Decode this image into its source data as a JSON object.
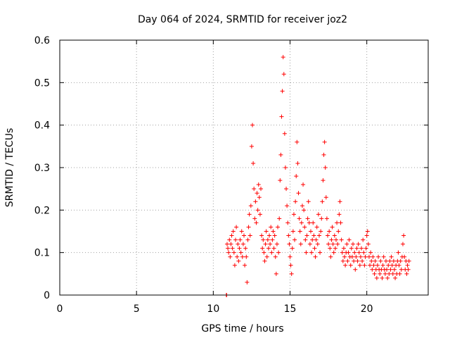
{
  "chart_data": {
    "type": "scatter",
    "title": "Day 064 of 2024, SRMTID for receiver joz2",
    "xlabel": "GPS time / hours",
    "ylabel": "SRMTID / TECUs",
    "xlim": [
      0,
      24
    ],
    "ylim": [
      0,
      0.6
    ],
    "x_ticks": [
      0,
      5,
      10,
      15,
      20
    ],
    "x_tick_labels": [
      "0",
      "5",
      "10",
      "15",
      "20"
    ],
    "y_ticks": [
      0,
      0.1,
      0.2,
      0.3,
      0.4,
      0.5,
      0.6
    ],
    "y_tick_labels": [
      "0",
      "0.1",
      "0.2",
      "0.3",
      "0.4",
      "0.5",
      "0.6"
    ],
    "grid": true,
    "marker": "+",
    "color": "#ff0000",
    "series": [
      {
        "name": "SRMTID",
        "points": [
          [
            10.85,
            0.0
          ],
          [
            10.87,
            0.0
          ],
          [
            10.9,
            0.12
          ],
          [
            10.95,
            0.11
          ],
          [
            11.0,
            0.1
          ],
          [
            11.05,
            0.13
          ],
          [
            11.1,
            0.09
          ],
          [
            11.15,
            0.12
          ],
          [
            11.2,
            0.14
          ],
          [
            11.25,
            0.11
          ],
          [
            11.3,
            0.15
          ],
          [
            11.35,
            0.1
          ],
          [
            11.4,
            0.07
          ],
          [
            11.45,
            0.13
          ],
          [
            11.5,
            0.16
          ],
          [
            11.55,
            0.09
          ],
          [
            11.6,
            0.12
          ],
          [
            11.65,
            0.08
          ],
          [
            11.7,
            0.11
          ],
          [
            11.75,
            0.13
          ],
          [
            11.8,
            0.1
          ],
          [
            11.85,
            0.15
          ],
          [
            11.9,
            0.09
          ],
          [
            11.95,
            0.12
          ],
          [
            12.0,
            0.14
          ],
          [
            12.05,
            0.07
          ],
          [
            12.1,
            0.11
          ],
          [
            12.15,
            0.09
          ],
          [
            12.2,
            0.03
          ],
          [
            12.25,
            0.13
          ],
          [
            12.3,
            0.16
          ],
          [
            12.35,
            0.19
          ],
          [
            12.4,
            0.14
          ],
          [
            12.45,
            0.21
          ],
          [
            12.5,
            0.35
          ],
          [
            12.55,
            0.4
          ],
          [
            12.6,
            0.31
          ],
          [
            12.65,
            0.25
          ],
          [
            12.7,
            0.18
          ],
          [
            12.75,
            0.22
          ],
          [
            12.8,
            0.17
          ],
          [
            12.85,
            0.24
          ],
          [
            12.9,
            0.2
          ],
          [
            12.95,
            0.26
          ],
          [
            13.0,
            0.23
          ],
          [
            13.05,
            0.19
          ],
          [
            13.1,
            0.25
          ],
          [
            13.15,
            0.14
          ],
          [
            13.2,
            0.11
          ],
          [
            13.25,
            0.13
          ],
          [
            13.3,
            0.1
          ],
          [
            13.35,
            0.08
          ],
          [
            13.4,
            0.12
          ],
          [
            13.45,
            0.15
          ],
          [
            13.5,
            0.09
          ],
          [
            13.55,
            0.13
          ],
          [
            13.6,
            0.11
          ],
          [
            13.65,
            0.14
          ],
          [
            13.7,
            0.12
          ],
          [
            13.75,
            0.16
          ],
          [
            13.8,
            0.1
          ],
          [
            13.85,
            0.13
          ],
          [
            13.9,
            0.15
          ],
          [
            13.95,
            0.11
          ],
          [
            14.0,
            0.14
          ],
          [
            14.05,
            0.09
          ],
          [
            14.1,
            0.05
          ],
          [
            14.15,
            0.12
          ],
          [
            14.2,
            0.16
          ],
          [
            14.25,
            0.1
          ],
          [
            14.3,
            0.18
          ],
          [
            14.35,
            0.27
          ],
          [
            14.4,
            0.33
          ],
          [
            14.45,
            0.42
          ],
          [
            14.5,
            0.48
          ],
          [
            14.55,
            0.56
          ],
          [
            14.6,
            0.52
          ],
          [
            14.65,
            0.38
          ],
          [
            14.7,
            0.3
          ],
          [
            14.75,
            0.25
          ],
          [
            14.8,
            0.21
          ],
          [
            14.85,
            0.17
          ],
          [
            14.9,
            0.14
          ],
          [
            14.95,
            0.12
          ],
          [
            15.0,
            0.09
          ],
          [
            15.05,
            0.07
          ],
          [
            15.1,
            0.05
          ],
          [
            15.15,
            0.11
          ],
          [
            15.2,
            0.15
          ],
          [
            15.25,
            0.19
          ],
          [
            15.3,
            0.13
          ],
          [
            15.35,
            0.22
          ],
          [
            15.4,
            0.28
          ],
          [
            15.45,
            0.36
          ],
          [
            15.5,
            0.31
          ],
          [
            15.55,
            0.24
          ],
          [
            15.6,
            0.18
          ],
          [
            15.65,
            0.15
          ],
          [
            15.7,
            0.12
          ],
          [
            15.75,
            0.17
          ],
          [
            15.8,
            0.21
          ],
          [
            15.85,
            0.26
          ],
          [
            15.9,
            0.2
          ],
          [
            15.95,
            0.16
          ],
          [
            16.0,
            0.13
          ],
          [
            16.05,
            0.1
          ],
          [
            16.1,
            0.14
          ],
          [
            16.15,
            0.18
          ],
          [
            16.2,
            0.22
          ],
          [
            16.25,
            0.17
          ],
          [
            16.3,
            0.12
          ],
          [
            16.35,
            0.15
          ],
          [
            16.4,
            0.1
          ],
          [
            16.45,
            0.13
          ],
          [
            16.5,
            0.17
          ],
          [
            16.55,
            0.14
          ],
          [
            16.6,
            0.11
          ],
          [
            16.65,
            0.09
          ],
          [
            16.7,
            0.13
          ],
          [
            16.75,
            0.16
          ],
          [
            16.8,
            0.12
          ],
          [
            16.85,
            0.19
          ],
          [
            16.9,
            0.14
          ],
          [
            16.95,
            0.1
          ],
          [
            17.0,
            0.15
          ],
          [
            17.05,
            0.18
          ],
          [
            17.1,
            0.22
          ],
          [
            17.15,
            0.27
          ],
          [
            17.2,
            0.33
          ],
          [
            17.25,
            0.36
          ],
          [
            17.3,
            0.3
          ],
          [
            17.35,
            0.23
          ],
          [
            17.4,
            0.18
          ],
          [
            17.45,
            0.14
          ],
          [
            17.5,
            0.12
          ],
          [
            17.55,
            0.15
          ],
          [
            17.6,
            0.11
          ],
          [
            17.65,
            0.09
          ],
          [
            17.7,
            0.13
          ],
          [
            17.75,
            0.16
          ],
          [
            17.8,
            0.12
          ],
          [
            17.85,
            0.1
          ],
          [
            17.9,
            0.14
          ],
          [
            17.95,
            0.11
          ],
          [
            18.0,
            0.13
          ],
          [
            18.05,
            0.17
          ],
          [
            18.1,
            0.12
          ],
          [
            18.15,
            0.15
          ],
          [
            18.2,
            0.19
          ],
          [
            18.25,
            0.22
          ],
          [
            18.3,
            0.17
          ],
          [
            18.35,
            0.13
          ],
          [
            18.4,
            0.1
          ],
          [
            18.45,
            0.08
          ],
          [
            18.5,
            0.11
          ],
          [
            18.55,
            0.09
          ],
          [
            18.6,
            0.07
          ],
          [
            18.65,
            0.1
          ],
          [
            18.7,
            0.12
          ],
          [
            18.75,
            0.08
          ],
          [
            18.8,
            0.1
          ],
          [
            18.85,
            0.13
          ],
          [
            18.9,
            0.09
          ],
          [
            18.95,
            0.07
          ],
          [
            19.0,
            0.11
          ],
          [
            19.05,
            0.09
          ],
          [
            19.1,
            0.12
          ],
          [
            19.15,
            0.08
          ],
          [
            19.2,
            0.1
          ],
          [
            19.25,
            0.06
          ],
          [
            19.3,
            0.09
          ],
          [
            19.35,
            0.11
          ],
          [
            19.4,
            0.08
          ],
          [
            19.45,
            0.12
          ],
          [
            19.5,
            0.1
          ],
          [
            19.55,
            0.07
          ],
          [
            19.6,
            0.09
          ],
          [
            19.65,
            0.11
          ],
          [
            19.7,
            0.08
          ],
          [
            19.75,
            0.13
          ],
          [
            19.8,
            0.1
          ],
          [
            19.85,
            0.07
          ],
          [
            19.9,
            0.09
          ],
          [
            19.95,
            0.11
          ],
          [
            20.0,
            0.14
          ],
          [
            20.05,
            0.15
          ],
          [
            20.1,
            0.12
          ],
          [
            20.15,
            0.09
          ],
          [
            20.2,
            0.07
          ],
          [
            20.25,
            0.1
          ],
          [
            20.3,
            0.08
          ],
          [
            20.35,
            0.06
          ],
          [
            20.4,
            0.09
          ],
          [
            20.45,
            0.07
          ],
          [
            20.5,
            0.05
          ],
          [
            20.55,
            0.08
          ],
          [
            20.6,
            0.06
          ],
          [
            20.65,
            0.04
          ],
          [
            20.7,
            0.07
          ],
          [
            20.75,
            0.09
          ],
          [
            20.8,
            0.06
          ],
          [
            20.85,
            0.05
          ],
          [
            20.9,
            0.08
          ],
          [
            20.95,
            0.06
          ],
          [
            21.0,
            0.04
          ],
          [
            21.05,
            0.07
          ],
          [
            21.1,
            0.09
          ],
          [
            21.15,
            0.06
          ],
          [
            21.2,
            0.05
          ],
          [
            21.25,
            0.08
          ],
          [
            21.3,
            0.06
          ],
          [
            21.35,
            0.04
          ],
          [
            21.4,
            0.07
          ],
          [
            21.45,
            0.05
          ],
          [
            21.5,
            0.08
          ],
          [
            21.55,
            0.06
          ],
          [
            21.6,
            0.09
          ],
          [
            21.65,
            0.07
          ],
          [
            21.7,
            0.05
          ],
          [
            21.75,
            0.08
          ],
          [
            21.8,
            0.06
          ],
          [
            21.85,
            0.04
          ],
          [
            21.9,
            0.07
          ],
          [
            21.95,
            0.05
          ],
          [
            22.0,
            0.08
          ],
          [
            22.05,
            0.1
          ],
          [
            22.1,
            0.07
          ],
          [
            22.15,
            0.05
          ],
          [
            22.2,
            0.08
          ],
          [
            22.25,
            0.06
          ],
          [
            22.3,
            0.09
          ],
          [
            22.35,
            0.12
          ],
          [
            22.4,
            0.14
          ],
          [
            22.45,
            0.09
          ],
          [
            22.5,
            0.06
          ],
          [
            22.55,
            0.08
          ],
          [
            22.6,
            0.05
          ],
          [
            22.65,
            0.07
          ],
          [
            22.7,
            0.06
          ],
          [
            22.75,
            0.08
          ]
        ]
      }
    ]
  }
}
